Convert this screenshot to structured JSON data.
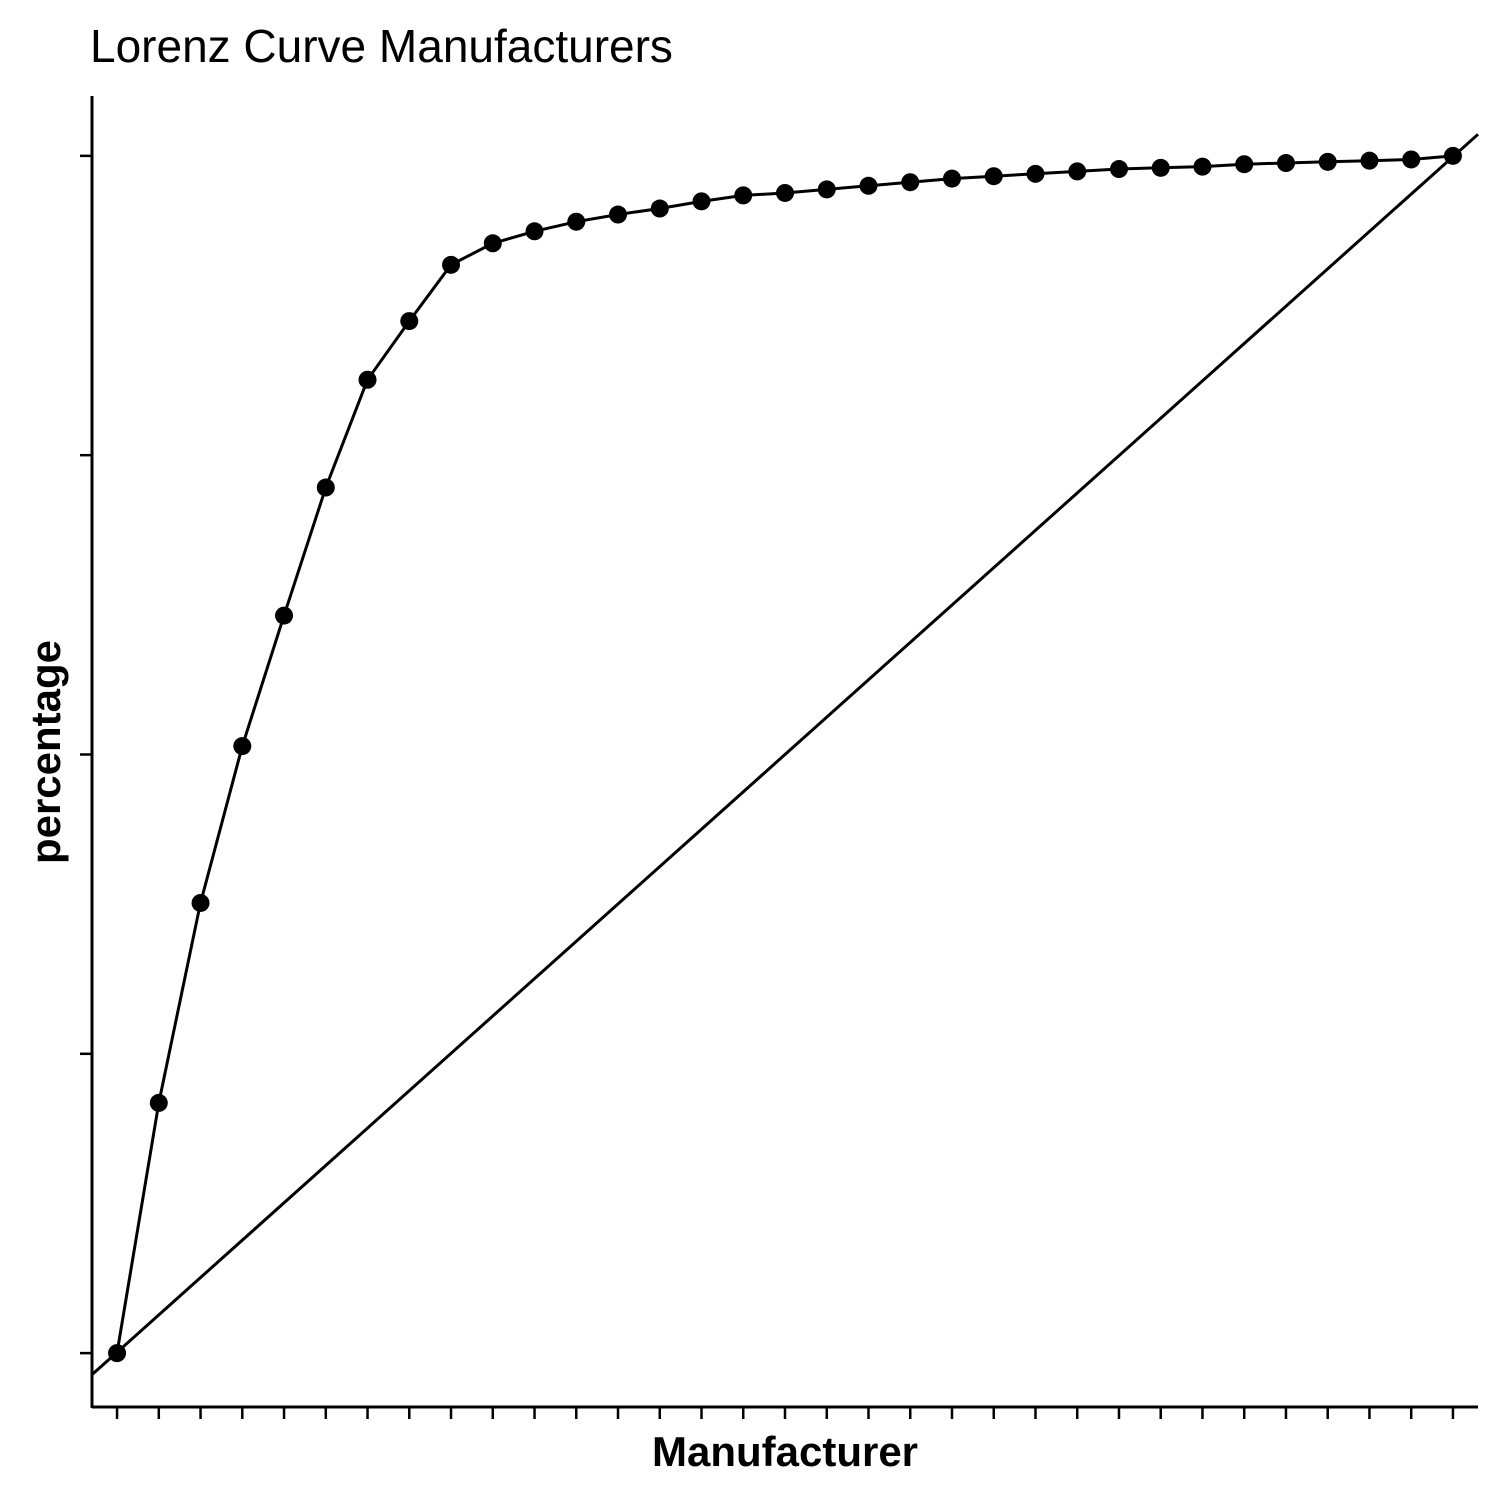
{
  "chart_data": {
    "type": "line",
    "title": "Lorenz Curve Manufacturers",
    "xlabel": "Manufacturer",
    "ylabel": "percentage",
    "x_tick_labels_shown": false,
    "y_tick_labels_shown": false,
    "grid": false,
    "legend": "none",
    "xlim": [
      0.4,
      33.6
    ],
    "ylim": [
      -0.045,
      1.05
    ],
    "series": [
      {
        "x": [
          1,
          2,
          3,
          4,
          5,
          6,
          7,
          8,
          9,
          10,
          11,
          12,
          13,
          14,
          15,
          16,
          17,
          18,
          19,
          20,
          21,
          22,
          23,
          24,
          25,
          26,
          27,
          28,
          29,
          30,
          31,
          32,
          33
        ],
        "values": [
          0,
          0.209,
          0.376,
          0.507,
          0.616,
          0.723,
          0.813,
          0.862,
          0.909,
          0.927,
          0.937,
          0.945,
          0.951,
          0.956,
          0.962,
          0.967,
          0.969,
          0.972,
          0.975,
          0.978,
          0.981,
          0.983,
          0.985,
          0.987,
          0.989,
          0.99,
          0.991,
          0.993,
          0.994,
          0.995,
          0.996,
          0.997,
          1.0
        ]
      }
    ],
    "reference_line": {
      "type": "equality",
      "from": [
        0.4,
        -0.018
      ],
      "to": [
        33.6,
        1.018
      ]
    }
  }
}
